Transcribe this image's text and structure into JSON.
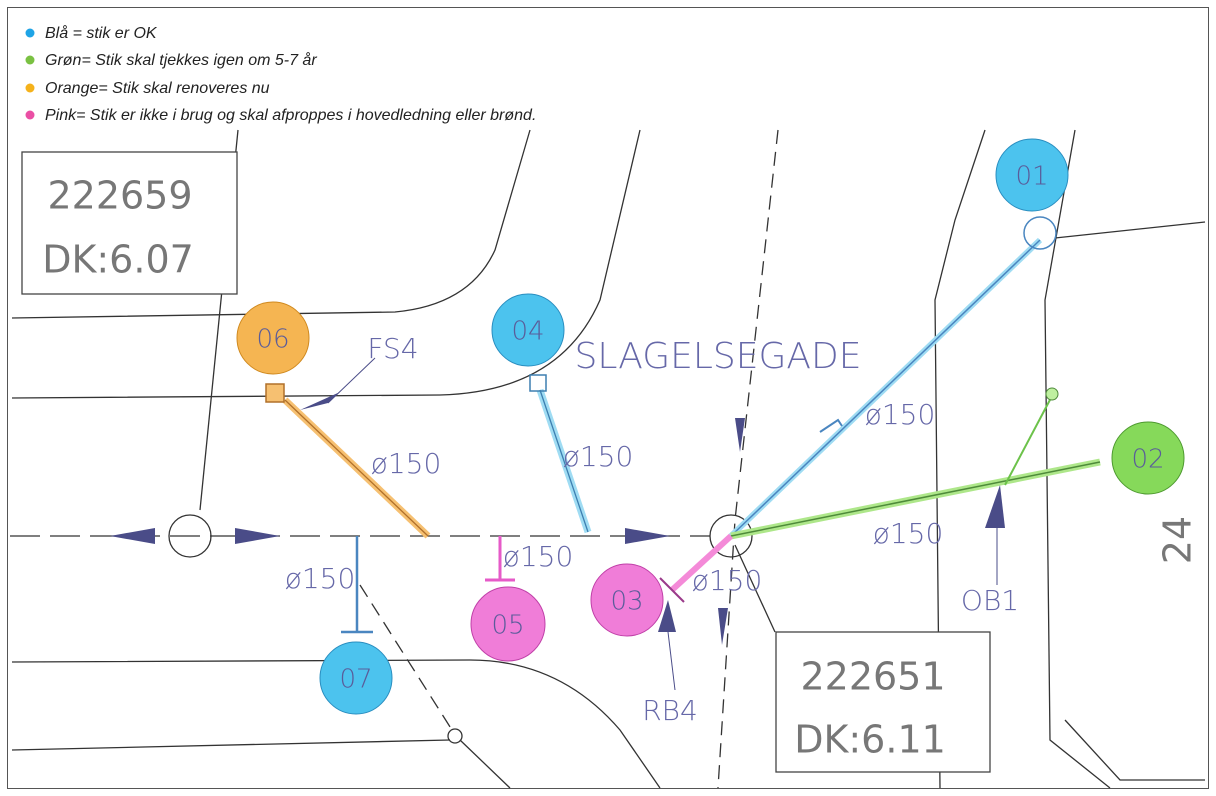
{
  "legend": [
    "Blå = stik er OK",
    "Grøn= Stik skal tjekkes igen om 5-7 år",
    "Orange= Stik skal renoveres nu",
    "Pink= Stik er ikke i brug og skal afproppes i hovedledning eller brønd."
  ],
  "boxes": [
    {
      "number": "222659",
      "dk": "DK:6.07"
    },
    {
      "number": "222651",
      "dk": "DK:6.11"
    }
  ],
  "street": "SLAGELSEGADE",
  "stik": [
    {
      "label": "01",
      "pipe": "ø150"
    },
    {
      "label": "02",
      "pipe": "ø150"
    },
    {
      "label": "03",
      "pipe": "ø150"
    },
    {
      "label": "04",
      "pipe": "ø150"
    },
    {
      "label": "05",
      "pipe": "ø150"
    },
    {
      "label": "06",
      "pipe": "ø150"
    },
    {
      "label": "07",
      "pipe": "ø150"
    }
  ],
  "markers": [
    "FS4",
    "RB4",
    "OB1"
  ],
  "house_number": "24"
}
